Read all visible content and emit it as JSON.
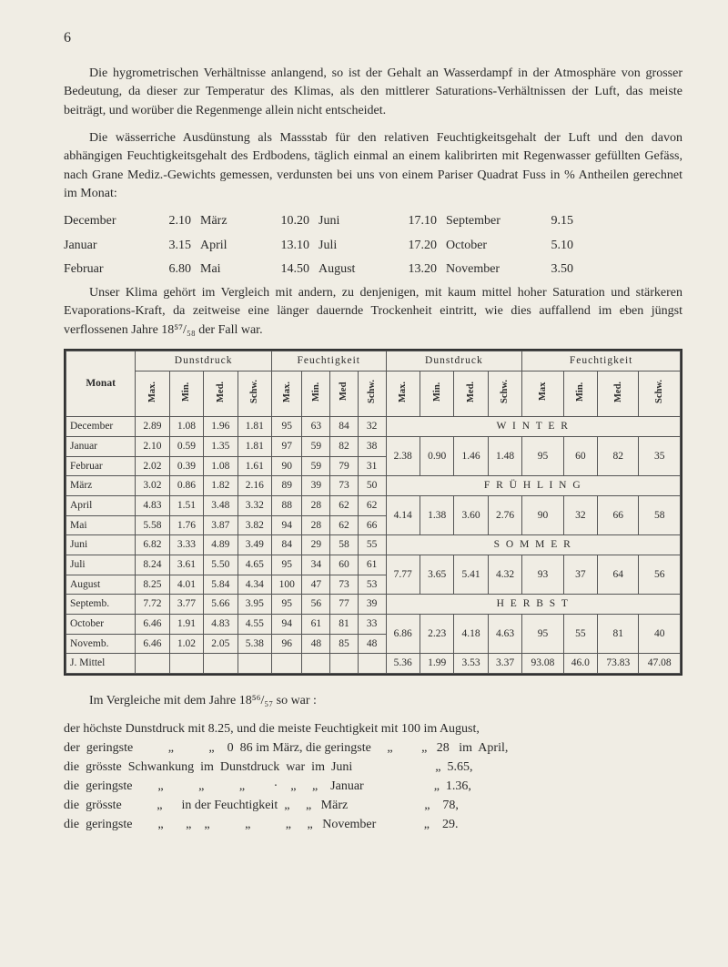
{
  "page_number": "6",
  "para1": "Die hygrometrischen Verhältnisse anlangend, so ist der Gehalt an Wasserdampf in der Atmosphäre von grosser Bedeutung, da dieser zur Temperatur des Klimas, als den mittlerer Saturations-Verhältnissen der Luft, das meiste beiträgt, und worüber die Regenmenge allein nicht entscheidet.",
  "para2": "Die wässerriche Ausdünstung als Massstab für den relativen Feuchtigkeitsgehalt der Luft und den davon abhängigen Feuchtigkeitsgehalt des Erdbodens, täglich einmal an einem kalibrirten mit Regenwasser gefüllten Gefäss, nach Grane Mediz.-Gewichts gemessen, verdunsten bei uns von einem Pariser Quadrat Fuss in % Antheilen gerechnet im Monat:",
  "monthrows": [
    {
      "m1": "December",
      "v1": "2.10",
      "m2": "März",
      "v2": "10.20",
      "m3": "Juni",
      "v3": "17.10",
      "m4": "September",
      "v4": "9.15"
    },
    {
      "m1": "Januar",
      "v1": "3.15",
      "m2": "April",
      "v2": "13.10",
      "m3": "Juli",
      "v3": "17.20",
      "m4": "October",
      "v4": "5.10"
    },
    {
      "m1": "Februar",
      "v1": "6.80",
      "m2": "Mai",
      "v2": "14.50",
      "m3": "August",
      "v3": "13.20",
      "m4": "November",
      "v4": "3.50"
    }
  ],
  "para3": "Unser Klima gehört im Vergleich mit andern, zu denjenigen, mit kaum mittel hoher Saturation und stärkeren Evaporations-Kraft, da zeitweise eine länger dauernde Trockenheit eintritt, wie dies auffallend im eben jüngst verflossenen Jahre 18⁵⁷/₅₈ der Fall war.",
  "table": {
    "group_headers": [
      "Dunstdruck",
      "Feuchtigkeit",
      "Dunstdruck",
      "Feuchtigkeit"
    ],
    "sub_headers": [
      "Monat",
      "Max.",
      "Min.",
      "Med.",
      "Schw.",
      "Max.",
      "Min.",
      "Med",
      "Schw.",
      "Max.",
      "Min.",
      "Med.",
      "Schw.",
      "Max",
      "Min.",
      "Med.",
      "Schw."
    ],
    "seasons": [
      "W I N T E R",
      "F R Ü H L I N G",
      "S O M M E R",
      "H E R B S T"
    ],
    "left_rows": [
      [
        "December",
        "2.89",
        "1.08",
        "1.96",
        "1.81",
        "95",
        "63",
        "84",
        "32"
      ],
      [
        "Januar",
        "2.10",
        "0.59",
        "1.35",
        "1.81",
        "97",
        "59",
        "82",
        "38"
      ],
      [
        "Februar",
        "2.02",
        "0.39",
        "1.08",
        "1.61",
        "90",
        "59",
        "79",
        "31"
      ],
      [
        "März",
        "3.02",
        "0.86",
        "1.82",
        "2.16",
        "89",
        "39",
        "73",
        "50"
      ],
      [
        "April",
        "4.83",
        "1.51",
        "3.48",
        "3.32",
        "88",
        "28",
        "62",
        "62"
      ],
      [
        "Mai",
        "5.58",
        "1.76",
        "3.87",
        "3.82",
        "94",
        "28",
        "62",
        "66"
      ],
      [
        "Juni",
        "6.82",
        "3.33",
        "4.89",
        "3.49",
        "84",
        "29",
        "58",
        "55"
      ],
      [
        "Juli",
        "8.24",
        "3.61",
        "5.50",
        "4.65",
        "95",
        "34",
        "60",
        "61"
      ],
      [
        "August",
        "8.25",
        "4.01",
        "5.84",
        "4.34",
        "100",
        "47",
        "73",
        "53"
      ],
      [
        "Septemb.",
        "7.72",
        "3.77",
        "5.66",
        "3.95",
        "95",
        "56",
        "77",
        "39"
      ],
      [
        "October",
        "6.46",
        "1.91",
        "4.83",
        "4.55",
        "94",
        "61",
        "81",
        "33"
      ],
      [
        "Novemb.",
        "6.46",
        "1.02",
        "2.05",
        "5.38",
        "96",
        "48",
        "85",
        "48"
      ]
    ],
    "right_rows": {
      "1": [
        "2.38",
        "0.90",
        "1.46",
        "1.48",
        "95",
        "60",
        "82",
        "35"
      ],
      "4": [
        "4.14",
        "1.38",
        "3.60",
        "2.76",
        "90",
        "32",
        "66",
        "58"
      ],
      "7": [
        "7.77",
        "3.65",
        "5.41",
        "4.32",
        "93",
        "37",
        "64",
        "56"
      ],
      "10": [
        "6.86",
        "2.23",
        "4.18",
        "4.63",
        "95",
        "55",
        "81",
        "40"
      ]
    },
    "footer": [
      "J. Mittel",
      "",
      "",
      "",
      "",
      "",
      "",
      "",
      "",
      "5.36",
      "1.99",
      "3.53",
      "3.37",
      "93.08",
      "46.0",
      "73.83",
      "47.08"
    ]
  },
  "below_intro": "Im Vergleiche mit dem Jahre 18⁵⁶/₅₇ so war :",
  "below_lines": [
    "der höchste Dunstdruck mit 8.25, und die meiste Feuchtigkeit mit 100 im August,",
    "der  geringste           „           „    0  86 im März, die geringste     „         „   28   im  April,",
    "die  grösste  Schwankung  im  Dunstdruck  war  im  Juni                          „  5.65,",
    "die  geringste        „           „           „         ·    „     „    Januar                      „  1.36,",
    "die  grösste           „      in der Feuchtigkeit  „     „   März                        „    78,",
    "die  geringste        „       „    „           „           „     „   November               „    29."
  ]
}
